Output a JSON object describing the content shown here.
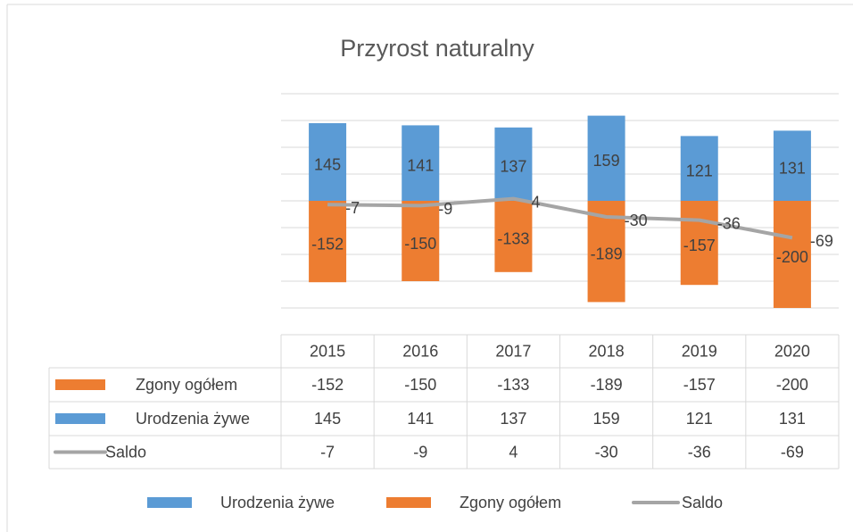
{
  "chart_data": {
    "type": "bar",
    "title": "Przyrost naturalny",
    "categories": [
      "2015",
      "2016",
      "2017",
      "2018",
      "2019",
      "2020"
    ],
    "series": [
      {
        "name": "Urodzenia żywe",
        "color": "#5b9bd5",
        "values": [
          145,
          141,
          137,
          159,
          121,
          131
        ]
      },
      {
        "name": "Zgony ogółem",
        "color": "#ed7d31",
        "values": [
          -152,
          -150,
          -133,
          -189,
          -157,
          -200
        ]
      },
      {
        "name": "Saldo",
        "color": "#a5a5a5",
        "type": "line",
        "values": [
          -7,
          -9,
          4,
          -30,
          -36,
          -69
        ]
      }
    ],
    "ylim": [
      -200,
      200
    ],
    "yticks": [
      -200,
      -150,
      -100,
      -50,
      0,
      50,
      100,
      150,
      200
    ],
    "grid": true,
    "legend": "bottom"
  }
}
